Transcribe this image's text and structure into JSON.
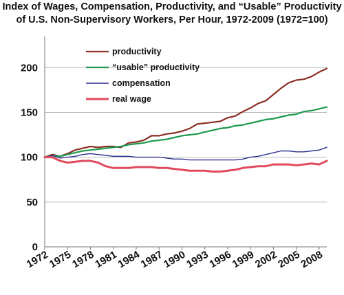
{
  "chart_data": {
    "type": "line",
    "title": "Index of Wages, Compensation, Productivity, and “Usable” Productivity",
    "subtitle": "of U.S. Non-Supervisory Workers, Per Hour, 1972-2009 (1972=100)",
    "xlabel": "",
    "ylabel": "",
    "xlim": [
      1972,
      2009
    ],
    "ylim": [
      0,
      200
    ],
    "x_ticks": [
      "1972",
      "1975",
      "1978",
      "1981",
      "1984",
      "1987",
      "1990",
      "1993",
      "1996",
      "1999",
      "2002",
      "2005",
      "2008"
    ],
    "y_ticks": [
      "0",
      "50",
      "100",
      "150",
      "200"
    ],
    "grid": "horizontal",
    "legend_position": "top-left",
    "x": [
      1972,
      1973,
      1974,
      1975,
      1976,
      1977,
      1978,
      1979,
      1980,
      1981,
      1982,
      1983,
      1984,
      1985,
      1986,
      1987,
      1988,
      1989,
      1990,
      1991,
      1992,
      1993,
      1994,
      1995,
      1996,
      1997,
      1998,
      1999,
      2000,
      2001,
      2002,
      2003,
      2004,
      2005,
      2006,
      2007,
      2008,
      2009
    ],
    "series": [
      {
        "name": "productivity",
        "color": "#8b2e24",
        "values": [
          100,
          103,
          101,
          104,
          108,
          110,
          112,
          111,
          112,
          112,
          111,
          116,
          117,
          119,
          124,
          124,
          126,
          127,
          129,
          132,
          137,
          138,
          139,
          140,
          144,
          146,
          151,
          155,
          160,
          163,
          170,
          177,
          183,
          186,
          187,
          190,
          195,
          199
        ]
      },
      {
        "name": "“usable” productivity",
        "color": "#1e9a4e",
        "values": [
          100,
          102,
          101,
          103,
          105,
          107,
          108,
          109,
          110,
          111,
          112,
          114,
          115,
          116,
          118,
          119,
          120,
          122,
          124,
          125,
          126,
          128,
          130,
          132,
          133,
          135,
          136,
          138,
          140,
          142,
          143,
          145,
          147,
          148,
          151,
          152,
          154,
          156
        ]
      },
      {
        "name": "compensation",
        "color": "#2b2f8f",
        "values": [
          100,
          102,
          99,
          100,
          101,
          103,
          104,
          103,
          102,
          101,
          101,
          101,
          100,
          100,
          100,
          100,
          99,
          98,
          98,
          97,
          97,
          97,
          97,
          97,
          97,
          97,
          98,
          100,
          101,
          103,
          105,
          107,
          107,
          106,
          106,
          107,
          108,
          111
        ]
      },
      {
        "name": "real wage",
        "color": "#e04a5a",
        "values": [
          100,
          100,
          96,
          94,
          95,
          96,
          96,
          94,
          90,
          88,
          88,
          88,
          89,
          89,
          89,
          88,
          88,
          87,
          86,
          85,
          85,
          85,
          84,
          84,
          85,
          86,
          88,
          89,
          90,
          90,
          92,
          92,
          92,
          91,
          92,
          93,
          92,
          96
        ]
      }
    ]
  }
}
